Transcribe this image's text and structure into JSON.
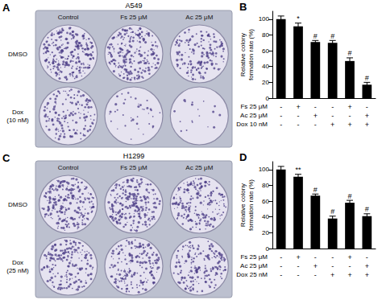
{
  "chart_data": [
    {
      "type": "bar",
      "panel_label": "B",
      "y_label": "Relative colony formation rate (%)",
      "categories": [
        null,
        null,
        null,
        null,
        null,
        null
      ],
      "treatments": [
        {
          "name": "Fs 25 μM",
          "signs": [
            "-",
            "+",
            "-",
            "-",
            "+",
            "-"
          ]
        },
        {
          "name": "Ac 25 μM",
          "signs": [
            "-",
            "-",
            "+",
            "-",
            "-",
            "+"
          ]
        },
        {
          "name": "Dox 10 nM",
          "signs": [
            "-",
            "-",
            "-",
            "+",
            "+",
            "+"
          ]
        }
      ],
      "values": [
        100,
        91,
        71,
        70,
        47,
        17
      ],
      "errors": [
        4,
        4,
        2,
        3,
        4,
        3
      ],
      "significance": [
        null,
        "*",
        "#",
        "#",
        "#",
        "#"
      ],
      "color": "#000000",
      "ylim": [
        0,
        110
      ],
      "yticks": [
        0,
        20,
        40,
        60,
        80,
        100
      ],
      "grid": false
    },
    {
      "type": "bar",
      "panel_label": "D",
      "y_label": "Relative colony formation rate (%)",
      "categories": [
        null,
        null,
        null,
        null,
        null,
        null
      ],
      "treatments": [
        {
          "name": "Fs 25 μM",
          "signs": [
            "-",
            "+",
            "-",
            "-",
            "+",
            "-"
          ]
        },
        {
          "name": "Ac 25 μM",
          "signs": [
            "-",
            "-",
            "+",
            "-",
            "-",
            "+"
          ]
        },
        {
          "name": "Dox 25 nM",
          "signs": [
            "-",
            "-",
            "-",
            "+",
            "+",
            "+"
          ]
        }
      ],
      "values": [
        100,
        91,
        67,
        38,
        58,
        41
      ],
      "errors": [
        4,
        3,
        2,
        3,
        3,
        3
      ],
      "significance": [
        null,
        "**",
        "#",
        "#",
        "#",
        "#"
      ],
      "color": "#000000",
      "ylim": [
        0,
        110
      ],
      "yticks": [
        0,
        20,
        40,
        60,
        80,
        100
      ],
      "grid": false
    }
  ],
  "plates": [
    {
      "panel_label": "A",
      "title": "A549",
      "columns": [
        "Control",
        "Fs 25 μM",
        "Ac 25 μM"
      ],
      "rows": [
        "DMSO",
        "Dox (10 nM)"
      ]
    },
    {
      "panel_label": "C",
      "title": "H1299",
      "columns": [
        "Control",
        "Fs 25 μM",
        "Ac 25 μM"
      ],
      "rows": [
        "DMSO",
        "Dox (25 nM)"
      ]
    }
  ]
}
